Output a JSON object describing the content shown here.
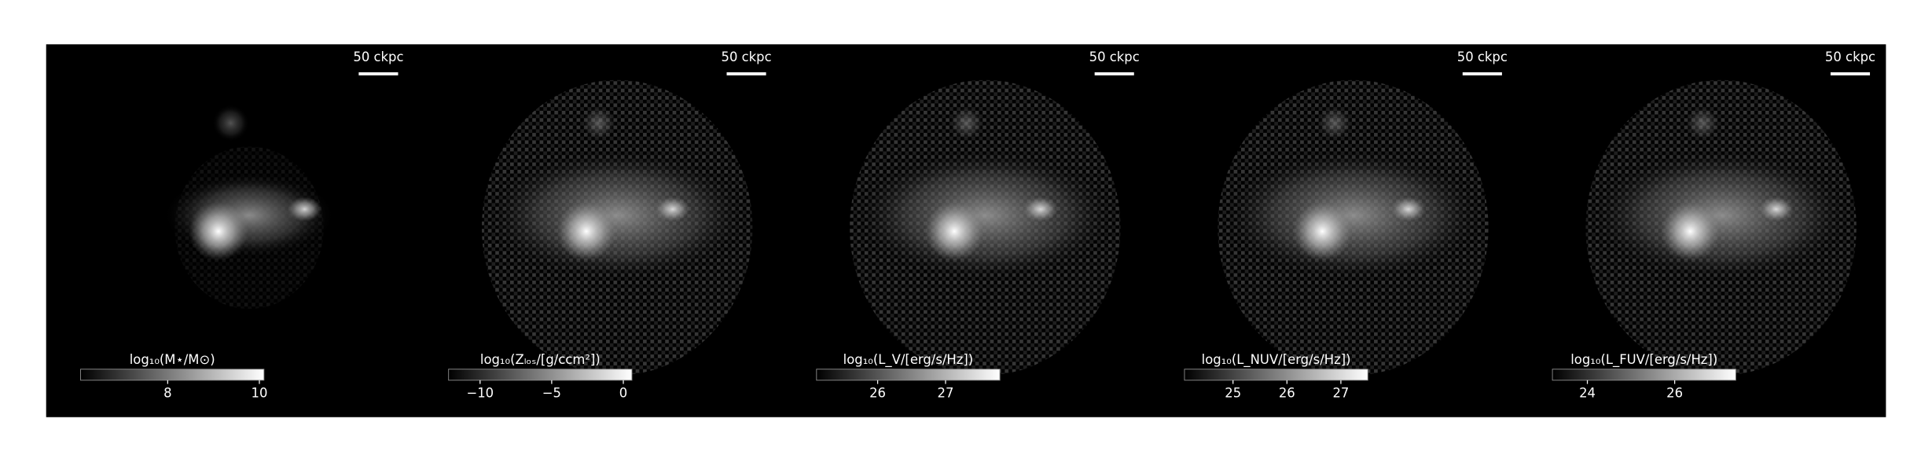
{
  "chart_data": [
    {
      "type": "image",
      "scale_bar_label": "50 ckpc",
      "colorbar_label": "log₁₀(M⋆/M⊙)",
      "clim": [
        6.1,
        10.1
      ],
      "cticks": [
        8,
        10
      ]
    },
    {
      "type": "image",
      "scale_bar_label": "50 ckpc",
      "colorbar_label": "log₁₀(Zₗₒₛ/[g/ccm²])",
      "clim": [
        -12.2,
        0.6
      ],
      "cticks": [
        {
          "value": -10,
          "label": "−10"
        },
        {
          "value": -5,
          "label": "−5"
        },
        0
      ]
    },
    {
      "type": "image",
      "scale_bar_label": "50 ckpc",
      "colorbar_label": "log₁₀(L_V/[erg/s/Hz])",
      "clim": [
        25.1,
        27.8
      ],
      "cticks": [
        26,
        27
      ]
    },
    {
      "type": "image",
      "scale_bar_label": "50 ckpc",
      "colorbar_label": "log₁₀(L_NUV/[erg/s/Hz])",
      "clim": [
        24.1,
        27.5
      ],
      "cticks": [
        25,
        26,
        27
      ]
    },
    {
      "type": "image",
      "scale_bar_label": "50 ckpc",
      "colorbar_label": "log₁₀(L_FUV/[erg/s/Hz])",
      "clim": [
        23.2,
        27.4
      ],
      "cticks": [
        24,
        26
      ]
    }
  ]
}
